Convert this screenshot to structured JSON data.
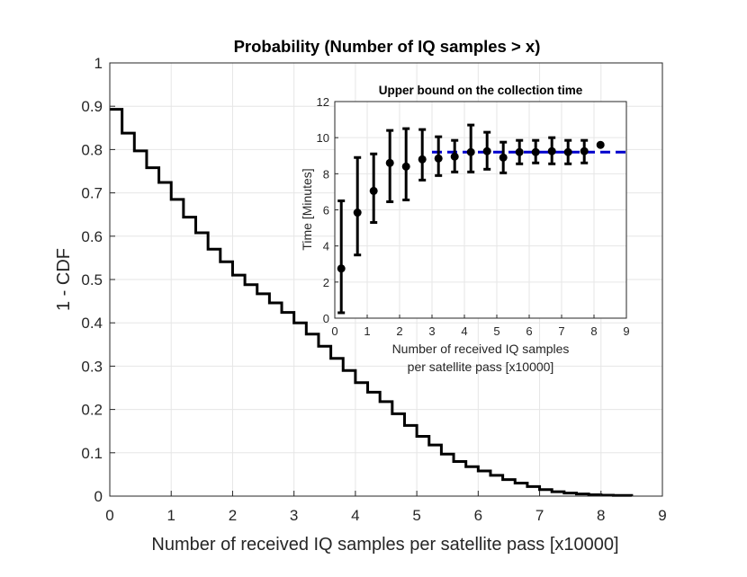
{
  "chart_data": [
    {
      "type": "line",
      "title": "Probability (Number of IQ samples > x)",
      "xlabel": "Number of received IQ samples per satellite pass [x10000]",
      "ylabel": "1 - CDF",
      "xlim": [
        0,
        9
      ],
      "ylim": [
        0,
        1
      ],
      "xticks": [
        "0",
        "1",
        "2",
        "3",
        "4",
        "5",
        "6",
        "7",
        "8",
        "9"
      ],
      "yticks": [
        "0",
        "0.1",
        "0.2",
        "0.3",
        "0.4",
        "0.5",
        "0.6",
        "0.7",
        "0.8",
        "0.9",
        "1"
      ],
      "grid": true,
      "line_color": "#000000",
      "step_x": [
        0,
        0.2,
        0.4,
        0.6,
        0.8,
        1.0,
        1.2,
        1.4,
        1.6,
        1.8,
        2.0,
        2.2,
        2.4,
        2.6,
        2.8,
        3.0,
        3.2,
        3.4,
        3.6,
        3.8,
        4.0,
        4.2,
        4.4,
        4.6,
        4.8,
        5.0,
        5.2,
        5.4,
        5.6,
        5.8,
        6.0,
        6.2,
        6.4,
        6.6,
        6.8,
        7.0,
        7.2,
        7.4,
        7.6,
        7.8,
        8.0,
        8.2,
        8.5
      ],
      "step_y": [
        0.893,
        0.838,
        0.797,
        0.758,
        0.724,
        0.685,
        0.644,
        0.608,
        0.57,
        0.541,
        0.51,
        0.488,
        0.467,
        0.446,
        0.424,
        0.4,
        0.374,
        0.346,
        0.318,
        0.29,
        0.262,
        0.24,
        0.218,
        0.19,
        0.163,
        0.138,
        0.118,
        0.097,
        0.08,
        0.068,
        0.058,
        0.048,
        0.038,
        0.03,
        0.022,
        0.015,
        0.01,
        0.007,
        0.005,
        0.003,
        0.002,
        0.0015,
        0.001
      ]
    },
    {
      "type": "scatter",
      "title": "Upper bound on the collection time",
      "xlabel": [
        "Number of received IQ samples",
        "per satellite pass [x10000]"
      ],
      "ylabel": "Time [Minutes]",
      "xlim": [
        0,
        9
      ],
      "ylim": [
        0,
        12
      ],
      "xticks": [
        "0",
        "1",
        "2",
        "3",
        "4",
        "5",
        "6",
        "7",
        "8",
        "9"
      ],
      "yticks": [
        "0",
        "2",
        "4",
        "6",
        "8",
        "10",
        "12"
      ],
      "grid": true,
      "points": [
        {
          "x": 0.2,
          "y": 2.75,
          "lo": 0.3,
          "hi": 6.5
        },
        {
          "x": 0.7,
          "y": 5.85,
          "lo": 3.5,
          "hi": 8.9
        },
        {
          "x": 1.2,
          "y": 7.05,
          "lo": 5.3,
          "hi": 9.1
        },
        {
          "x": 1.7,
          "y": 8.6,
          "lo": 6.45,
          "hi": 10.4
        },
        {
          "x": 2.2,
          "y": 8.4,
          "lo": 6.55,
          "hi": 10.5
        },
        {
          "x": 2.7,
          "y": 8.8,
          "lo": 7.65,
          "hi": 10.45
        },
        {
          "x": 3.2,
          "y": 8.85,
          "lo": 7.9,
          "hi": 10.05
        },
        {
          "x": 3.7,
          "y": 8.95,
          "lo": 8.1,
          "hi": 9.85
        },
        {
          "x": 4.2,
          "y": 9.2,
          "lo": 8.1,
          "hi": 10.7
        },
        {
          "x": 4.7,
          "y": 9.25,
          "lo": 8.25,
          "hi": 10.3
        },
        {
          "x": 5.2,
          "y": 8.9,
          "lo": 8.05,
          "hi": 9.75
        },
        {
          "x": 5.7,
          "y": 9.2,
          "lo": 8.55,
          "hi": 9.85
        },
        {
          "x": 6.2,
          "y": 9.2,
          "lo": 8.6,
          "hi": 9.85
        },
        {
          "x": 6.7,
          "y": 9.25,
          "lo": 8.55,
          "hi": 10.0
        },
        {
          "x": 7.2,
          "y": 9.2,
          "lo": 8.55,
          "hi": 9.85
        },
        {
          "x": 7.7,
          "y": 9.25,
          "lo": 8.6,
          "hi": 9.85
        },
        {
          "x": 8.2,
          "y": 9.6,
          "lo": null,
          "hi": null
        }
      ],
      "bound": {
        "y": 9.2,
        "x_start": 3.0,
        "x_end": 9.0,
        "color": "#0000cc",
        "style": "dashed"
      }
    }
  ]
}
